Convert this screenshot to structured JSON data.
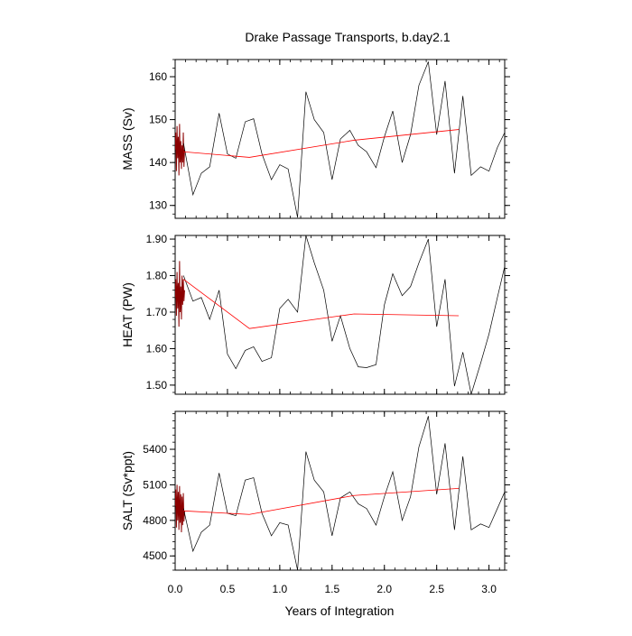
{
  "chart_data": {
    "title": "Drake Passage Transports, b.day2.1",
    "xlabel": "Years of Integration",
    "type": "line",
    "xlim": [
      0.0,
      3.15
    ],
    "x_ticks": [
      0.0,
      0.5,
      1.0,
      1.5,
      2.0,
      2.5,
      3.0
    ],
    "x_tick_labels": [
      "0.0",
      "0.5",
      "1.0",
      "1.5",
      "2.0",
      "2.5",
      "3.0"
    ],
    "colors": {
      "black_series": "#000000",
      "red_series": "#ff0000",
      "dense_red": "#8b0000"
    },
    "panels": [
      {
        "ylabel": "MASS (Sv)",
        "ylim": [
          127,
          164
        ],
        "y_ticks": [
          130,
          140,
          150,
          160
        ],
        "y_tick_labels": [
          "130",
          "140",
          "150",
          "160"
        ],
        "black_series": {
          "x": [
            0.08,
            0.17,
            0.25,
            0.33,
            0.42,
            0.5,
            0.58,
            0.67,
            0.75,
            0.83,
            0.92,
            1.0,
            1.08,
            1.17,
            1.25,
            1.33,
            1.42,
            1.5,
            1.58,
            1.67,
            1.75,
            1.83,
            1.92,
            2.0,
            2.08,
            2.17,
            2.25,
            2.33,
            2.42,
            2.5,
            2.58,
            2.67,
            2.75,
            2.83,
            2.92,
            3.0,
            3.08,
            3.15
          ],
          "y": [
            144.5,
            132.5,
            137.5,
            139,
            151.5,
            142,
            141,
            149.5,
            150.2,
            142,
            136,
            139.5,
            138.5,
            127.2,
            156.5,
            150,
            147,
            136,
            145.5,
            147.5,
            144,
            142.5,
            138.8,
            146,
            152,
            140,
            146.5,
            158,
            163.5,
            146.5,
            159,
            137.5,
            155.5,
            137,
            139,
            138,
            143.5,
            147
          ]
        },
        "red_series": {
          "x": [
            0.08,
            0.71,
            1.71,
            2.71
          ],
          "y": [
            142.5,
            141.2,
            145.2,
            147.7
          ]
        },
        "dense_start": {
          "x": [
            0.0,
            0.006,
            0.012,
            0.018,
            0.024,
            0.03,
            0.036,
            0.042,
            0.048,
            0.054,
            0.06,
            0.066,
            0.072,
            0.078,
            0.084,
            0.09
          ],
          "y": [
            143,
            147,
            138,
            148.5,
            141,
            146,
            137,
            149,
            140,
            145,
            138.5,
            144,
            140,
            147,
            139,
            143
          ]
        }
      },
      {
        "ylabel": "HEAT (PW)",
        "ylim": [
          1.475,
          1.91
        ],
        "y_ticks": [
          1.5,
          1.6,
          1.7,
          1.8,
          1.9
        ],
        "y_tick_labels": [
          "1.50",
          "1.60",
          "1.70",
          "1.80",
          "1.90"
        ],
        "black_series": {
          "x": [
            0.08,
            0.17,
            0.25,
            0.33,
            0.42,
            0.5,
            0.58,
            0.67,
            0.75,
            0.83,
            0.92,
            1.0,
            1.08,
            1.17,
            1.25,
            1.33,
            1.42,
            1.5,
            1.58,
            1.67,
            1.75,
            1.83,
            1.92,
            2.0,
            2.08,
            2.17,
            2.25,
            2.33,
            2.42,
            2.5,
            2.58,
            2.67,
            2.75,
            2.83,
            2.92,
            3.0,
            3.08,
            3.15
          ],
          "y": [
            1.8,
            1.73,
            1.74,
            1.68,
            1.76,
            1.585,
            1.545,
            1.595,
            1.605,
            1.565,
            1.575,
            1.71,
            1.735,
            1.7,
            1.91,
            1.835,
            1.76,
            1.62,
            1.69,
            1.6,
            1.55,
            1.548,
            1.556,
            1.72,
            1.805,
            1.745,
            1.77,
            1.835,
            1.9,
            1.66,
            1.79,
            1.497,
            1.59,
            1.475,
            1.56,
            1.64,
            1.74,
            1.825
          ]
        },
        "red_series": {
          "x": [
            0.08,
            0.71,
            1.71,
            2.71
          ],
          "y": [
            1.79,
            1.655,
            1.695,
            1.69
          ]
        },
        "dense_start": {
          "x": [
            0.0,
            0.006,
            0.012,
            0.018,
            0.024,
            0.03,
            0.036,
            0.042,
            0.048,
            0.054,
            0.06,
            0.066,
            0.072,
            0.078,
            0.084,
            0.09
          ],
          "y": [
            1.74,
            1.79,
            1.69,
            1.81,
            1.71,
            1.78,
            1.66,
            1.84,
            1.7,
            1.77,
            1.68,
            1.8,
            1.72,
            1.79,
            1.73,
            1.76
          ]
        }
      },
      {
        "ylabel": "SALT (Sv*ppt)",
        "ylim": [
          4380,
          5720
        ],
        "y_ticks": [
          4500,
          4800,
          5100,
          5400
        ],
        "y_tick_labels": [
          "4500",
          "4800",
          "5100",
          "5400"
        ],
        "black_series": {
          "x": [
            0.08,
            0.17,
            0.25,
            0.33,
            0.42,
            0.5,
            0.58,
            0.67,
            0.75,
            0.83,
            0.92,
            1.0,
            1.08,
            1.17,
            1.25,
            1.33,
            1.42,
            1.5,
            1.58,
            1.67,
            1.75,
            1.83,
            1.92,
            2.0,
            2.08,
            2.17,
            2.25,
            2.33,
            2.42,
            2.5,
            2.58,
            2.67,
            2.75,
            2.83,
            2.92,
            3.0,
            3.08,
            3.15
          ],
          "y": [
            4900,
            4540,
            4700,
            4760,
            5200,
            4860,
            4840,
            5140,
            5160,
            4860,
            4670,
            4780,
            4760,
            4380,
            5380,
            5140,
            5040,
            4670,
            4990,
            5040,
            4940,
            4900,
            4760,
            5000,
            5210,
            4800,
            5000,
            5420,
            5680,
            5020,
            5450,
            4720,
            5340,
            4720,
            4770,
            4740,
            4900,
            5040
          ]
        },
        "red_series": {
          "x": [
            0.08,
            0.71,
            1.71,
            2.71
          ],
          "y": [
            4880,
            4850,
            5010,
            5070
          ]
        },
        "dense_start": {
          "x": [
            0.0,
            0.006,
            0.012,
            0.018,
            0.024,
            0.03,
            0.036,
            0.042,
            0.048,
            0.054,
            0.06,
            0.066,
            0.072,
            0.078,
            0.084,
            0.09
          ],
          "y": [
            4920,
            5060,
            4740,
            5100,
            4800,
            5040,
            4720,
            5090,
            4780,
            5020,
            4700,
            5000,
            4760,
            5030,
            4790,
            4880
          ]
        }
      }
    ]
  }
}
